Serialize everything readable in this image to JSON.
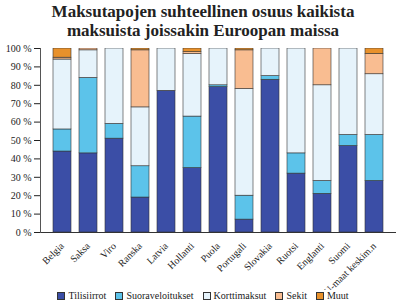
{
  "chart_data": {
    "type": "bar",
    "title": "Maksutapojen suhteellinen osuus kaikista maksuista joissakin Euroopan maissa",
    "stacked": true,
    "grid": false,
    "legend": "bottom",
    "categories": [
      "Belgia",
      "Saksa",
      "Viro",
      "Ranska",
      "Latvia",
      "Hollanti",
      "Puola",
      "Portugali",
      "Slovakia",
      "Ruotsi",
      "Englanti",
      "Suomi",
      "EU-maat keskim.n"
    ],
    "series": [
      {
        "name": "Tilisiirrot",
        "color": "#3b4ea6",
        "values": [
          44,
          43,
          51,
          19,
          77,
          35,
          79,
          7,
          83,
          32,
          21,
          47,
          28
        ]
      },
      {
        "name": "Suoraveloitukset",
        "color": "#5cc3ea",
        "values": [
          12,
          41,
          8,
          17,
          0,
          28,
          1,
          13,
          2,
          11,
          7,
          6,
          25
        ]
      },
      {
        "name": "Korttimaksut",
        "color": "#e6f3fb",
        "values": [
          38,
          15,
          41,
          32,
          23,
          34,
          20,
          58,
          15,
          57,
          52,
          47,
          33
        ]
      },
      {
        "name": "Sekit",
        "color": "#f9bd91",
        "values": [
          1,
          1,
          0,
          31,
          0,
          1,
          0,
          21,
          0,
          0,
          20,
          0,
          11
        ]
      },
      {
        "name": "Muut",
        "color": "#e8912b",
        "values": [
          5,
          0,
          0,
          1,
          0,
          2,
          0,
          1,
          0,
          0,
          0,
          0,
          3
        ]
      }
    ],
    "ylim": [
      0,
      100
    ],
    "yticks": [
      {
        "value": 0,
        "label": "0 %"
      },
      {
        "value": 10,
        "label": "10 %"
      },
      {
        "value": 20,
        "label": "20 %"
      },
      {
        "value": 30,
        "label": "30 %"
      },
      {
        "value": 40,
        "label": "40 %"
      },
      {
        "value": 50,
        "label": "50 %"
      },
      {
        "value": 60,
        "label": "60 %"
      },
      {
        "value": 70,
        "label": "70 %"
      },
      {
        "value": 80,
        "label": "80 %"
      },
      {
        "value": 90,
        "label": "90 %"
      },
      {
        "value": 100,
        "label": "100 %"
      }
    ]
  }
}
